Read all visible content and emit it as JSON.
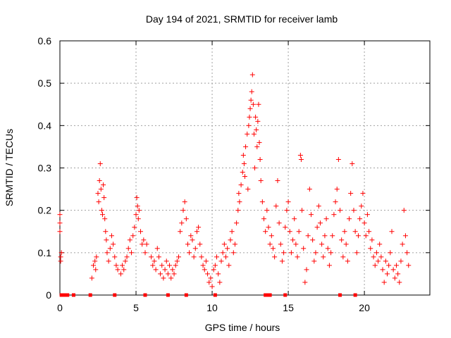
{
  "chart_data": {
    "type": "scatter",
    "title": "Day 194 of 2021, SRMTID for receiver lamb",
    "xlabel": "GPS time / hours",
    "ylabel": "SRMTID / TECUs",
    "xlim": [
      0,
      24.3
    ],
    "ylim": [
      0,
      0.6
    ],
    "xticks": [
      0,
      5,
      10,
      15,
      20
    ],
    "yticks": [
      0,
      0.1,
      0.2,
      0.3,
      0.4,
      0.5,
      0.6
    ],
    "ytick_labels": [
      "0",
      "0.1",
      "0.2",
      "0.3",
      "0.4",
      "0.5",
      "0.6"
    ],
    "grid": true,
    "marker": "+",
    "color": "#ff0000",
    "series": [
      {
        "name": "SRMTID",
        "points": [
          [
            0.0,
            0.17
          ],
          [
            0.0,
            0.15
          ],
          [
            0.0,
            0.19
          ],
          [
            0.05,
            0.09
          ],
          [
            0.05,
            0.08
          ],
          [
            0.1,
            0.1
          ],
          [
            2.1,
            0.04
          ],
          [
            2.2,
            0.07
          ],
          [
            2.3,
            0.08
          ],
          [
            2.35,
            0.06
          ],
          [
            2.4,
            0.09
          ],
          [
            2.5,
            0.24
          ],
          [
            2.55,
            0.22
          ],
          [
            2.6,
            0.27
          ],
          [
            2.65,
            0.31
          ],
          [
            2.7,
            0.25
          ],
          [
            2.75,
            0.2
          ],
          [
            2.8,
            0.19
          ],
          [
            2.85,
            0.26
          ],
          [
            2.9,
            0.23
          ],
          [
            2.95,
            0.18
          ],
          [
            3.0,
            0.15
          ],
          [
            3.05,
            0.13
          ],
          [
            3.1,
            0.1
          ],
          [
            3.2,
            0.08
          ],
          [
            3.3,
            0.11
          ],
          [
            3.4,
            0.14
          ],
          [
            3.5,
            0.12
          ],
          [
            3.6,
            0.09
          ],
          [
            3.7,
            0.07
          ],
          [
            3.8,
            0.06
          ],
          [
            4.0,
            0.05
          ],
          [
            4.1,
            0.07
          ],
          [
            4.2,
            0.06
          ],
          [
            4.3,
            0.08
          ],
          [
            4.4,
            0.09
          ],
          [
            4.5,
            0.11
          ],
          [
            4.6,
            0.13
          ],
          [
            4.7,
            0.1
          ],
          [
            4.8,
            0.14
          ],
          [
            4.9,
            0.16
          ],
          [
            5.0,
            0.19
          ],
          [
            5.05,
            0.23
          ],
          [
            5.1,
            0.21
          ],
          [
            5.15,
            0.18
          ],
          [
            5.2,
            0.2
          ],
          [
            5.3,
            0.15
          ],
          [
            5.4,
            0.12
          ],
          [
            5.5,
            0.13
          ],
          [
            5.6,
            0.1
          ],
          [
            5.7,
            0.12
          ],
          [
            6.0,
            0.09
          ],
          [
            6.1,
            0.07
          ],
          [
            6.2,
            0.08
          ],
          [
            6.3,
            0.06
          ],
          [
            6.4,
            0.11
          ],
          [
            6.5,
            0.09
          ],
          [
            6.6,
            0.05
          ],
          [
            6.7,
            0.07
          ],
          [
            6.8,
            0.04
          ],
          [
            6.9,
            0.06
          ],
          [
            7.0,
            0.08
          ],
          [
            7.1,
            0.05
          ],
          [
            7.2,
            0.07
          ],
          [
            7.3,
            0.04
          ],
          [
            7.4,
            0.06
          ],
          [
            7.5,
            0.05
          ],
          [
            7.6,
            0.07
          ],
          [
            7.7,
            0.08
          ],
          [
            7.8,
            0.09
          ],
          [
            7.9,
            0.15
          ],
          [
            8.0,
            0.17
          ],
          [
            8.1,
            0.2
          ],
          [
            8.2,
            0.22
          ],
          [
            8.3,
            0.18
          ],
          [
            8.4,
            0.12
          ],
          [
            8.5,
            0.1
          ],
          [
            8.6,
            0.14
          ],
          [
            8.7,
            0.13
          ],
          [
            8.8,
            0.09
          ],
          [
            8.9,
            0.11
          ],
          [
            9.0,
            0.15
          ],
          [
            9.1,
            0.16
          ],
          [
            9.2,
            0.12
          ],
          [
            9.3,
            0.09
          ],
          [
            9.4,
            0.07
          ],
          [
            9.5,
            0.06
          ],
          [
            9.6,
            0.08
          ],
          [
            9.7,
            0.05
          ],
          [
            9.8,
            0.03
          ],
          [
            9.9,
            0.04
          ],
          [
            10.0,
            0.02
          ],
          [
            10.1,
            0.06
          ],
          [
            10.2,
            0.07
          ],
          [
            10.3,
            0.09
          ],
          [
            10.4,
            0.05
          ],
          [
            10.5,
            0.03
          ],
          [
            10.6,
            0.08
          ],
          [
            10.7,
            0.1
          ],
          [
            10.8,
            0.12
          ],
          [
            10.9,
            0.09
          ],
          [
            11.0,
            0.11
          ],
          [
            11.1,
            0.07
          ],
          [
            11.2,
            0.13
          ],
          [
            11.3,
            0.15
          ],
          [
            11.4,
            0.1
          ],
          [
            11.5,
            0.12
          ],
          [
            11.6,
            0.17
          ],
          [
            11.7,
            0.2
          ],
          [
            11.75,
            0.24
          ],
          [
            11.8,
            0.22
          ],
          [
            11.9,
            0.26
          ],
          [
            12.0,
            0.29
          ],
          [
            12.05,
            0.33
          ],
          [
            12.1,
            0.31
          ],
          [
            12.15,
            0.28
          ],
          [
            12.2,
            0.35
          ],
          [
            12.3,
            0.38
          ],
          [
            12.35,
            0.25
          ],
          [
            12.4,
            0.4
          ],
          [
            12.45,
            0.42
          ],
          [
            12.5,
            0.44
          ],
          [
            12.55,
            0.46
          ],
          [
            12.6,
            0.48
          ],
          [
            12.65,
            0.52
          ],
          [
            12.7,
            0.45
          ],
          [
            12.75,
            0.38
          ],
          [
            12.8,
            0.3
          ],
          [
            12.85,
            0.42
          ],
          [
            12.9,
            0.39
          ],
          [
            12.95,
            0.35
          ],
          [
            13.0,
            0.41
          ],
          [
            13.05,
            0.45
          ],
          [
            13.1,
            0.36
          ],
          [
            13.15,
            0.32
          ],
          [
            13.2,
            0.27
          ],
          [
            13.3,
            0.22
          ],
          [
            13.4,
            0.18
          ],
          [
            13.5,
            0.15
          ],
          [
            13.6,
            0.2
          ],
          [
            13.7,
            0.16
          ],
          [
            13.8,
            0.12
          ],
          [
            13.9,
            0.14
          ],
          [
            14.0,
            0.11
          ],
          [
            14.1,
            0.09
          ],
          [
            14.2,
            0.21
          ],
          [
            14.3,
            0.27
          ],
          [
            14.4,
            0.17
          ],
          [
            14.5,
            0.12
          ],
          [
            14.6,
            0.08
          ],
          [
            14.7,
            0.1
          ],
          [
            14.8,
            0.16
          ],
          [
            14.9,
            0.2
          ],
          [
            15.0,
            0.22
          ],
          [
            15.1,
            0.15
          ],
          [
            15.2,
            0.1
          ],
          [
            15.3,
            0.13
          ],
          [
            15.4,
            0.18
          ],
          [
            15.5,
            0.12
          ],
          [
            15.6,
            0.09
          ],
          [
            15.7,
            0.15
          ],
          [
            15.8,
            0.33
          ],
          [
            15.85,
            0.32
          ],
          [
            15.9,
            0.2
          ],
          [
            16.0,
            0.11
          ],
          [
            16.1,
            0.03
          ],
          [
            16.2,
            0.06
          ],
          [
            16.3,
            0.14
          ],
          [
            16.4,
            0.25
          ],
          [
            16.5,
            0.19
          ],
          [
            16.6,
            0.13
          ],
          [
            16.7,
            0.08
          ],
          [
            16.8,
            0.1
          ],
          [
            16.9,
            0.16
          ],
          [
            17.0,
            0.21
          ],
          [
            17.1,
            0.17
          ],
          [
            17.2,
            0.12
          ],
          [
            17.3,
            0.09
          ],
          [
            17.4,
            0.14
          ],
          [
            17.5,
            0.18
          ],
          [
            17.6,
            0.11
          ],
          [
            17.7,
            0.07
          ],
          [
            17.8,
            0.1
          ],
          [
            17.9,
            0.14
          ],
          [
            18.0,
            0.19
          ],
          [
            18.1,
            0.22
          ],
          [
            18.2,
            0.25
          ],
          [
            18.3,
            0.32
          ],
          [
            18.4,
            0.2
          ],
          [
            18.5,
            0.13
          ],
          [
            18.6,
            0.09
          ],
          [
            18.7,
            0.15
          ],
          [
            18.8,
            0.12
          ],
          [
            18.9,
            0.08
          ],
          [
            19.0,
            0.18
          ],
          [
            19.1,
            0.24
          ],
          [
            19.2,
            0.31
          ],
          [
            19.3,
            0.2
          ],
          [
            19.4,
            0.15
          ],
          [
            19.5,
            0.1
          ],
          [
            19.6,
            0.14
          ],
          [
            19.7,
            0.18
          ],
          [
            19.8,
            0.21
          ],
          [
            19.9,
            0.24
          ],
          [
            20.0,
            0.17
          ],
          [
            20.1,
            0.14
          ],
          [
            20.2,
            0.19
          ],
          [
            20.3,
            0.15
          ],
          [
            20.4,
            0.11
          ],
          [
            20.5,
            0.13
          ],
          [
            20.6,
            0.09
          ],
          [
            20.7,
            0.07
          ],
          [
            20.8,
            0.1
          ],
          [
            20.9,
            0.08
          ],
          [
            21.0,
            0.12
          ],
          [
            21.1,
            0.09
          ],
          [
            21.2,
            0.06
          ],
          [
            21.3,
            0.03
          ],
          [
            21.4,
            0.08
          ],
          [
            21.5,
            0.05
          ],
          [
            21.6,
            0.07
          ],
          [
            21.7,
            0.1
          ],
          [
            21.8,
            0.15
          ],
          [
            21.9,
            0.06
          ],
          [
            22.0,
            0.04
          ],
          [
            22.1,
            0.07
          ],
          [
            22.2,
            0.05
          ],
          [
            22.3,
            0.03
          ],
          [
            22.4,
            0.08
          ],
          [
            22.5,
            0.12
          ],
          [
            22.6,
            0.2
          ],
          [
            22.7,
            0.14
          ],
          [
            22.8,
            0.1
          ],
          [
            22.9,
            0.07
          ]
        ]
      }
    ],
    "zero_markers": [
      0.1,
      0.2,
      0.3,
      0.5,
      0.9,
      2.0,
      3.6,
      5.6,
      7.1,
      8.3,
      10.2,
      13.5,
      13.6,
      13.7,
      13.8,
      14.8,
      18.4,
      19.4
    ]
  }
}
